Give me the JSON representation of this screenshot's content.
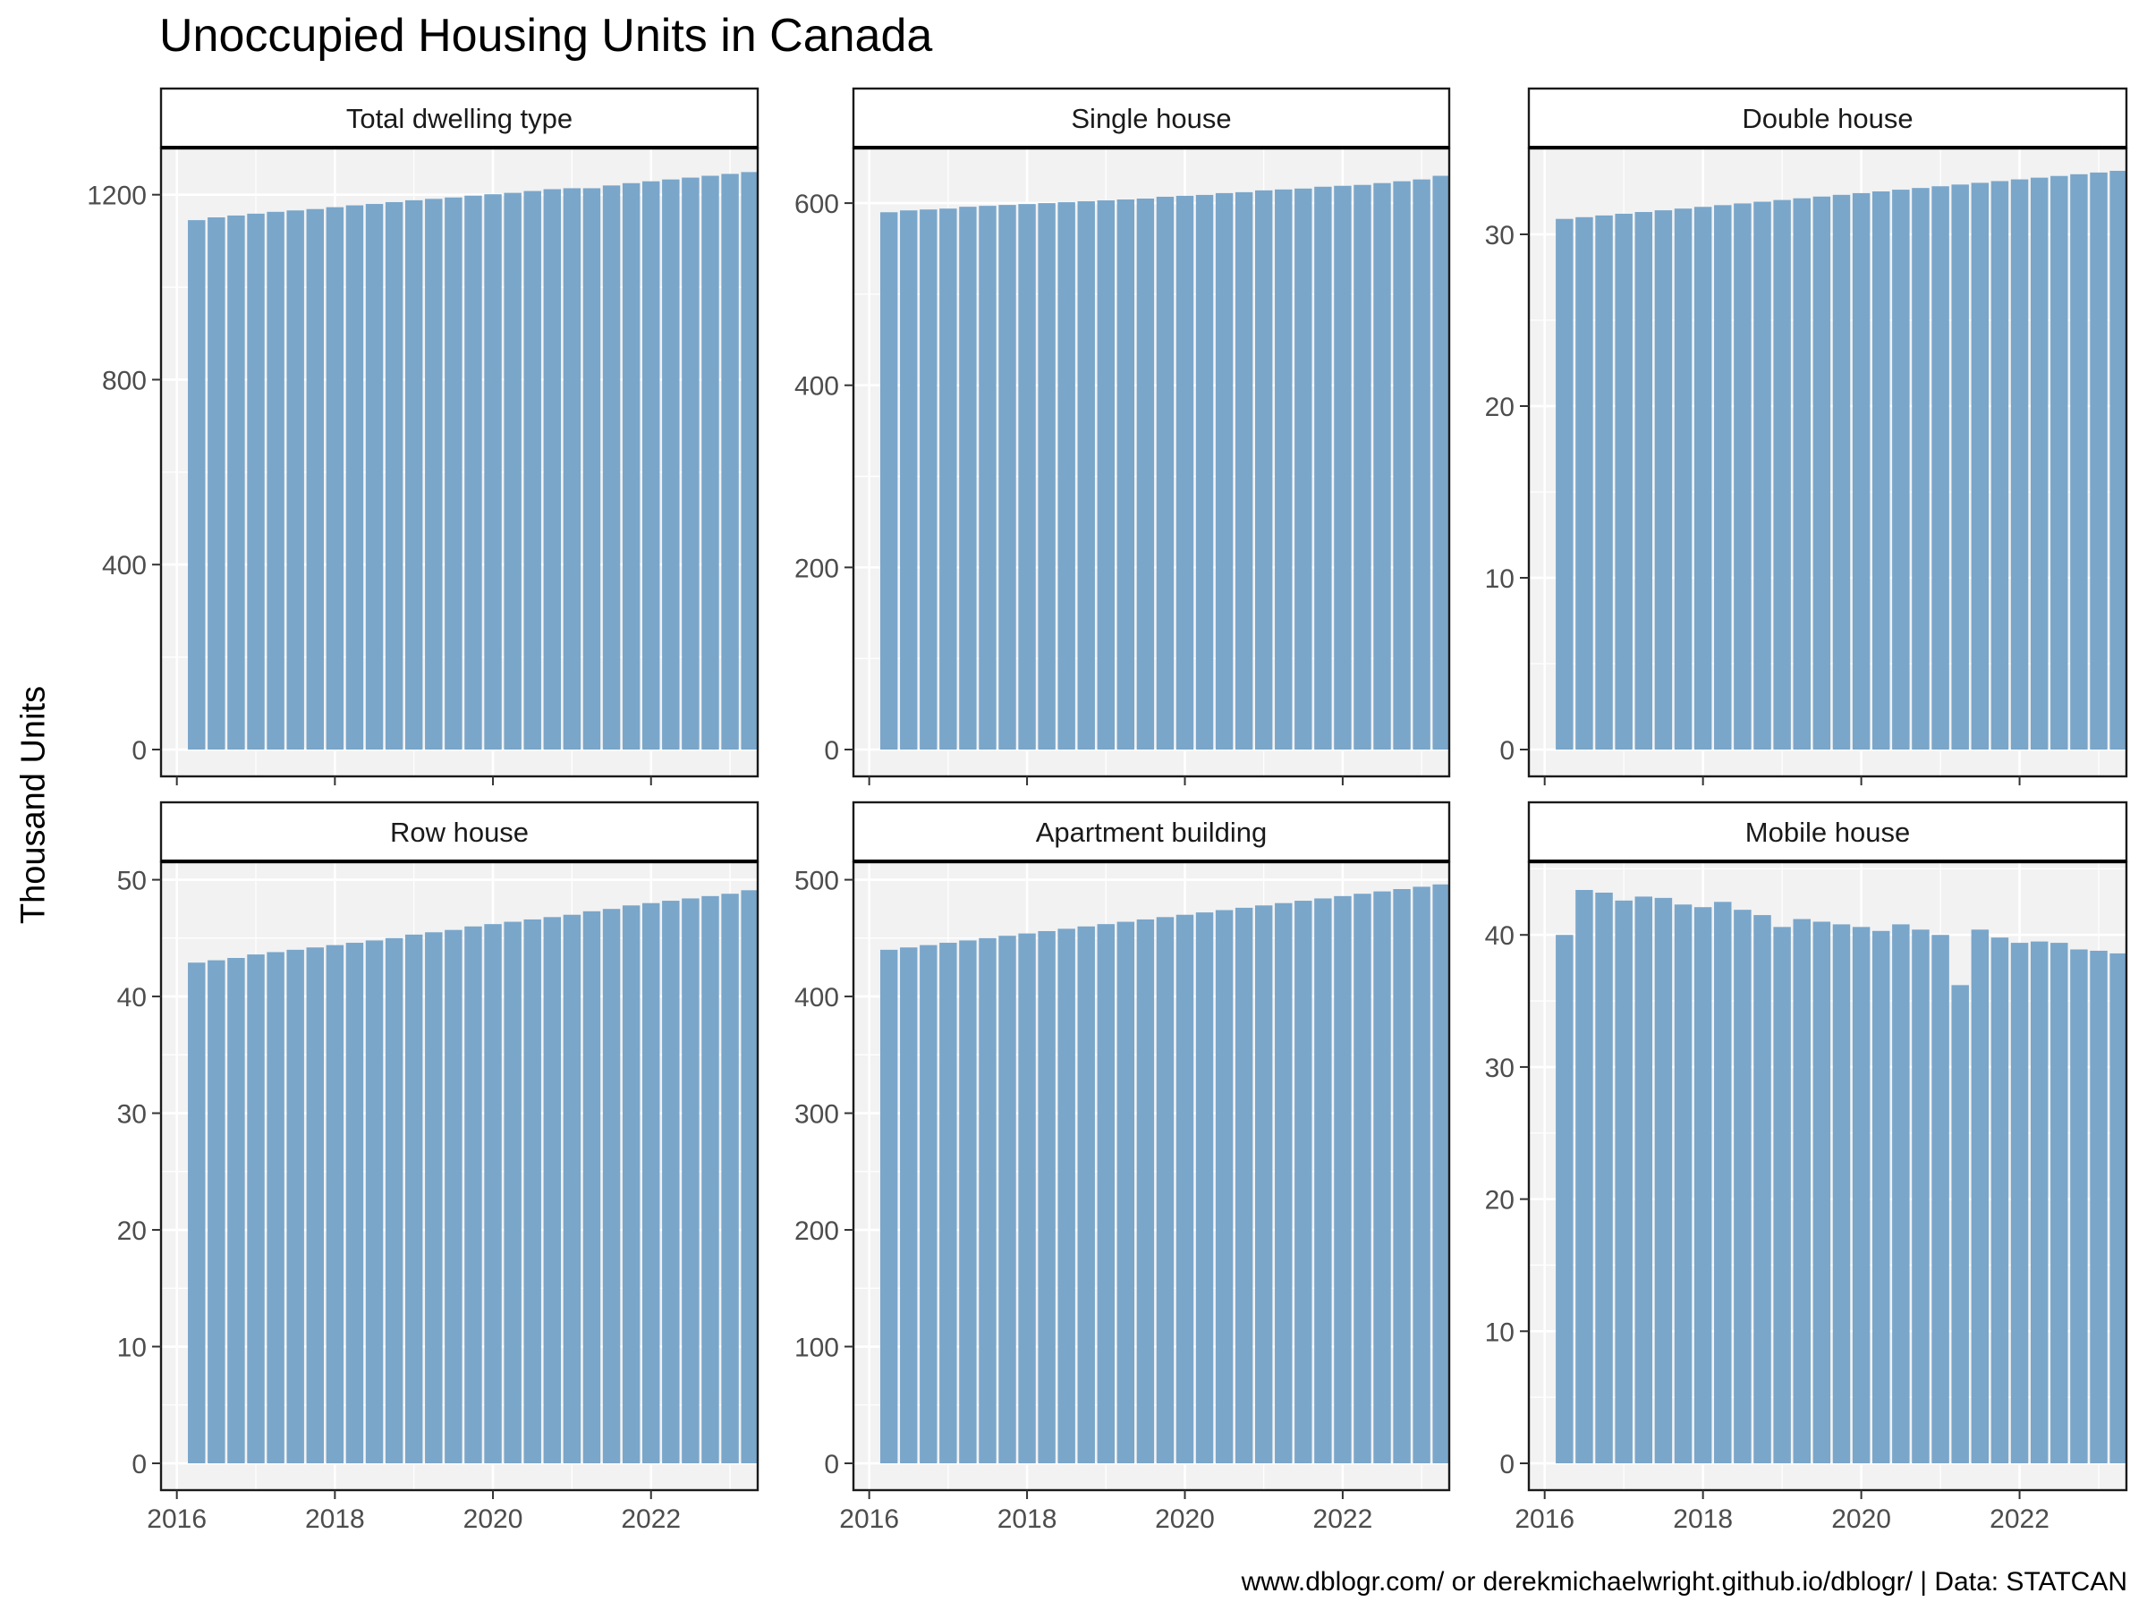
{
  "chart_data": {
    "type": "bar",
    "title": "Unoccupied Housing Units in Canada",
    "ylabel": "Thousand Units",
    "caption": "www.dblogr.com/ or derekmichaelwright.github.io/dblogr/ | Data: STATCAN",
    "x_ticks": [
      "2016",
      "2018",
      "2020",
      "2022"
    ],
    "x": [
      "2016 Q2",
      "2016 Q3",
      "2016 Q4",
      "2017 Q1",
      "2017 Q2",
      "2017 Q3",
      "2017 Q4",
      "2018 Q1",
      "2018 Q2",
      "2018 Q3",
      "2018 Q4",
      "2019 Q1",
      "2019 Q2",
      "2019 Q3",
      "2019 Q4",
      "2020 Q1",
      "2020 Q2",
      "2020 Q3",
      "2020 Q4",
      "2021 Q1",
      "2021 Q2",
      "2021 Q3",
      "2021 Q4",
      "2022 Q1",
      "2022 Q2",
      "2022 Q3",
      "2022 Q4",
      "2023 Q1",
      "2023 Q2"
    ],
    "bar_color": "#7aa6ca",
    "panel_background": "#f2f2f2",
    "panels": [
      {
        "name": "Total dwelling type",
        "ylim": [
          0,
          1300
        ],
        "y_ticks": [
          0,
          400,
          800,
          1200
        ],
        "values": [
          1145,
          1151,
          1155,
          1159,
          1163,
          1166,
          1169,
          1173,
          1177,
          1180,
          1184,
          1188,
          1191,
          1194,
          1198,
          1201,
          1204,
          1208,
          1212,
          1214,
          1214,
          1220,
          1225,
          1229,
          1233,
          1237,
          1241,
          1245,
          1249
        ]
      },
      {
        "name": "Single house",
        "ylim": [
          0,
          660
        ],
        "y_ticks": [
          0,
          200,
          400,
          600
        ],
        "values": [
          590,
          592,
          593,
          594,
          596,
          597,
          598,
          599,
          600,
          601,
          602,
          603,
          604,
          605,
          607,
          608,
          609,
          611,
          612,
          614,
          615,
          616,
          618,
          619,
          620,
          622,
          624,
          626,
          630
        ]
      },
      {
        "name": "Double house",
        "ylim": [
          0,
          35
        ],
        "y_ticks": [
          0,
          10,
          20,
          30
        ],
        "values": [
          30.9,
          31.0,
          31.1,
          31.2,
          31.3,
          31.4,
          31.5,
          31.6,
          31.7,
          31.8,
          31.9,
          32.0,
          32.1,
          32.2,
          32.3,
          32.4,
          32.5,
          32.6,
          32.7,
          32.8,
          32.9,
          33.0,
          33.1,
          33.2,
          33.3,
          33.4,
          33.5,
          33.6,
          33.7
        ]
      },
      {
        "name": "Row house",
        "ylim": [
          0,
          51.5
        ],
        "y_ticks": [
          0,
          10,
          20,
          30,
          40,
          50
        ],
        "values": [
          42.9,
          43.1,
          43.3,
          43.6,
          43.8,
          44.0,
          44.2,
          44.4,
          44.6,
          44.8,
          45.0,
          45.3,
          45.5,
          45.7,
          46.0,
          46.2,
          46.4,
          46.6,
          46.8,
          47.0,
          47.3,
          47.5,
          47.8,
          48.0,
          48.2,
          48.4,
          48.6,
          48.8,
          49.1
        ]
      },
      {
        "name": "Apartment building",
        "ylim": [
          0,
          515
        ],
        "y_ticks": [
          0,
          100,
          200,
          300,
          400,
          500
        ],
        "values": [
          440,
          442,
          444,
          446,
          448,
          450,
          452,
          454,
          456,
          458,
          460,
          462,
          464,
          466,
          468,
          470,
          472,
          474,
          476,
          478,
          480,
          482,
          484,
          486,
          488,
          490,
          492,
          494,
          496
        ]
      },
      {
        "name": "Mobile house",
        "ylim": [
          0,
          45.5
        ],
        "y_ticks": [
          0,
          10,
          20,
          30,
          40
        ],
        "values": [
          40.0,
          43.4,
          43.2,
          42.6,
          42.9,
          42.8,
          42.3,
          42.1,
          42.5,
          41.9,
          41.5,
          40.6,
          41.2,
          41.0,
          40.8,
          40.6,
          40.3,
          40.8,
          40.4,
          40.0,
          36.2,
          40.4,
          39.8,
          39.4,
          39.5,
          39.4,
          38.9,
          38.8,
          38.6
        ]
      }
    ]
  }
}
